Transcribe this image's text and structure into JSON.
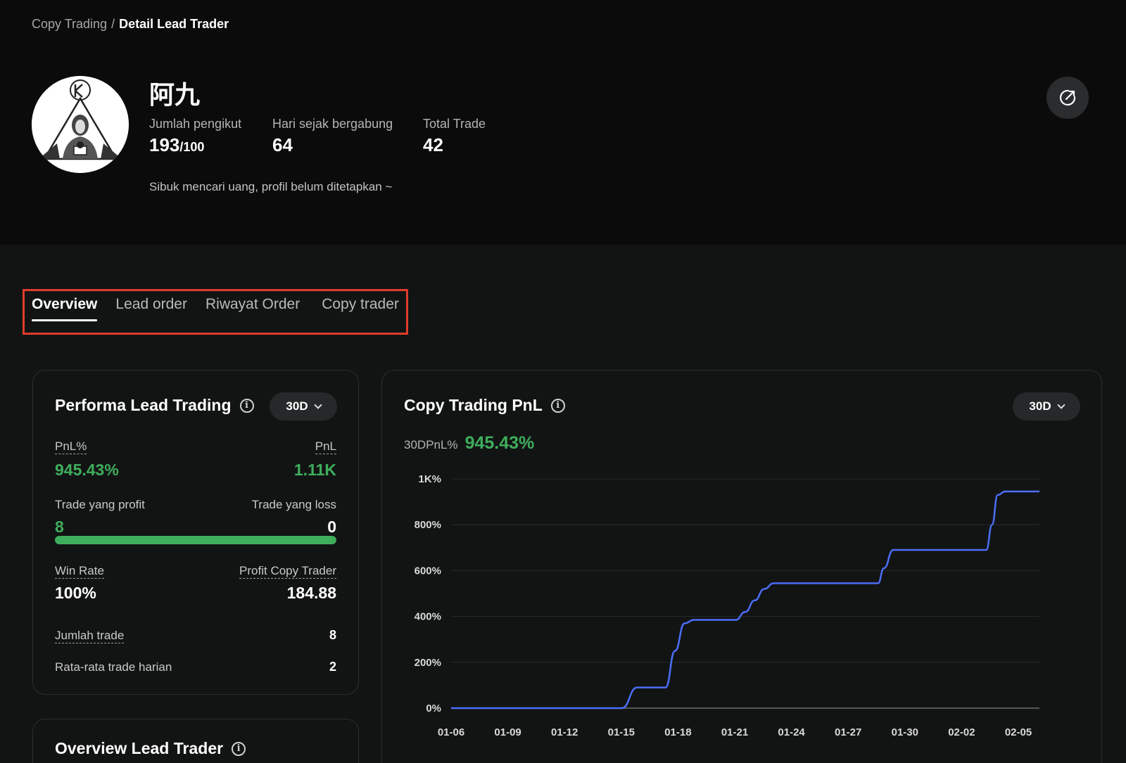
{
  "breadcrumb": {
    "parent": "Copy Trading",
    "separator": "/",
    "current": "Detail Lead Trader"
  },
  "profile": {
    "name": "阿九",
    "stats": [
      {
        "label": "Jumlah pengikut",
        "value": "193",
        "suffix": "/100"
      },
      {
        "label": "Hari sejak bergabung",
        "value": "64",
        "suffix": ""
      },
      {
        "label": "Total Trade",
        "value": "42",
        "suffix": ""
      }
    ],
    "bio": "Sibuk mencari uang, profil belum ditetapkan ~",
    "share_icon": "share-external-icon"
  },
  "tabs": [
    {
      "label": "Overview",
      "active": true
    },
    {
      "label": "Lead order",
      "active": false
    },
    {
      "label": "Riwayat Order",
      "active": false
    },
    {
      "label": "Copy trader",
      "active": false
    }
  ],
  "performance": {
    "title": "Performa Lead Trading",
    "period": "30D",
    "pnl_pct_label": "PnL%",
    "pnl_pct_value": "945.43%",
    "pnl_label": "PnL",
    "pnl_value": "1.11K",
    "profit_label": "Trade yang profit",
    "profit_value": "8",
    "loss_label": "Trade yang loss",
    "loss_value": "0",
    "profit_ratio": 1.0,
    "winrate_label": "Win Rate",
    "winrate_value": "100%",
    "copy_profit_label": "Profit Copy Trader",
    "copy_profit_value": "184.88",
    "total_trades_label": "Jumlah trade",
    "total_trades_value": "8",
    "daily_avg_label": "Rata-rata trade harian",
    "daily_avg_value": "2"
  },
  "overview_card": {
    "title": "Overview Lead Trader"
  },
  "pnl_card": {
    "title": "Copy Trading PnL",
    "period": "30D",
    "summary_label": "30DPnL%",
    "summary_value": "945.43%"
  },
  "colors": {
    "accent_green": "#3fae5c",
    "line_blue": "#4c6ef5",
    "highlight_red": "#e03c2b"
  },
  "chart_data": {
    "type": "line",
    "x_ticks": [
      "01-06",
      "01-09",
      "01-12",
      "01-15",
      "01-18",
      "01-21",
      "01-24",
      "01-27",
      "01-30",
      "02-02",
      "02-05"
    ],
    "y_ticks": [
      "0%",
      "200%",
      "400%",
      "600%",
      "800%",
      "1K%"
    ],
    "ylim": [
      0,
      1000
    ],
    "grid": true,
    "series": [
      {
        "x": [
          0,
          9.0,
          9.8,
          11.3,
          11.8,
          12.3,
          12.8,
          15.0,
          15.5,
          16.0,
          16.5,
          17.0,
          17.5,
          22.5,
          22.8,
          23.3,
          23.8,
          28.2,
          28.5,
          28.8,
          29.2,
          30.5,
          31.0
        ],
        "y": [
          0,
          0,
          90,
          90,
          250,
          370,
          385,
          385,
          420,
          470,
          520,
          545,
          545,
          545,
          610,
          690,
          690,
          690,
          800,
          930,
          945,
          945,
          945
        ]
      }
    ]
  }
}
